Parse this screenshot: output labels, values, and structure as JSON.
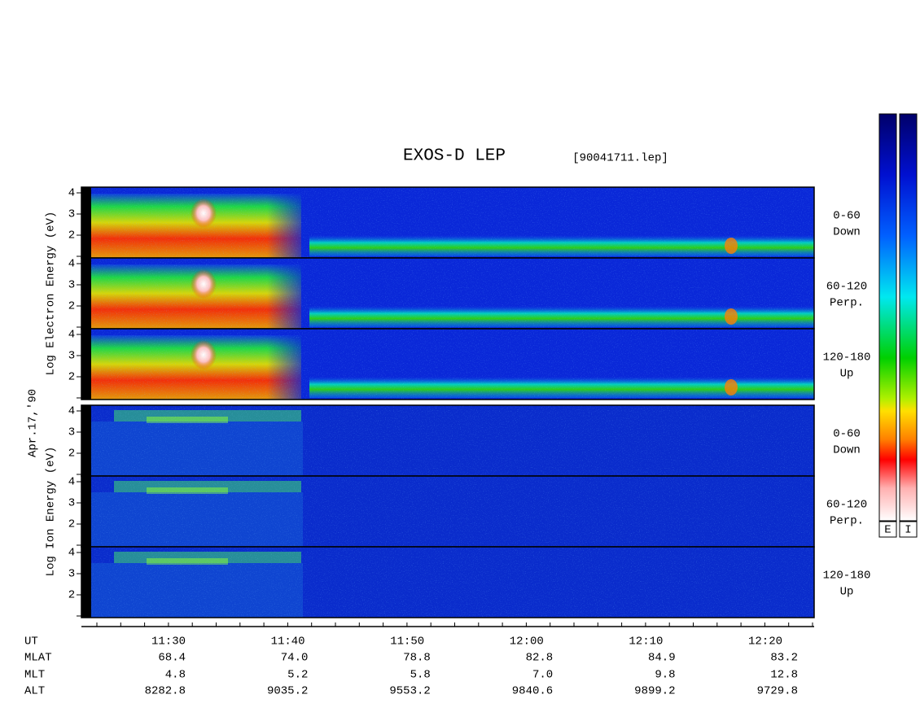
{
  "title": "EXOS-D LEP",
  "file": "[90041711.lep]",
  "date": "Apr.17,'90",
  "panels": [
    {
      "label": "Log Electron Energy (eV)",
      "channels": [
        {
          "range": "0-60",
          "dir": "Down"
        },
        {
          "range": "60-120",
          "dir": "Perp."
        },
        {
          "range": "120-180",
          "dir": "Up"
        }
      ]
    },
    {
      "label": "Log Ion Energy (eV)",
      "channels": [
        {
          "range": "0-60",
          "dir": "Down"
        },
        {
          "range": "60-120",
          "dir": "Perp."
        },
        {
          "range": "120-180",
          "dir": "Up"
        }
      ]
    }
  ],
  "yticks": [
    2,
    3,
    4
  ],
  "colorbar_labels": [
    "E",
    "I"
  ],
  "axis_rows": [
    {
      "name": "UT",
      "values": [
        "11:30",
        "11:40",
        "11:50",
        "12:00",
        "12:10",
        "12:20"
      ]
    },
    {
      "name": "MLAT",
      "values": [
        "68.4",
        "74.0",
        "78.8",
        "82.8",
        "84.9",
        "83.2"
      ]
    },
    {
      "name": "MLT",
      "values": [
        "4.8",
        "5.2",
        "5.8",
        "7.0",
        "9.8",
        "12.8"
      ]
    },
    {
      "name": "ALT",
      "values": [
        "8282.8",
        "9035.2",
        "9553.2",
        "9840.6",
        "9899.2",
        "9729.8"
      ]
    }
  ]
}
